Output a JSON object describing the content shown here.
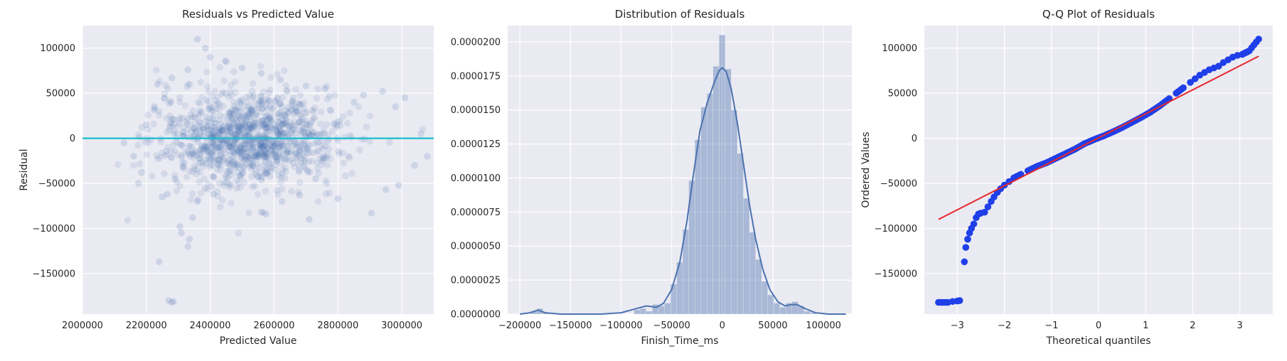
{
  "chart_data": [
    {
      "type": "scatter",
      "title": "Residuals vs Predicted Value",
      "xlabel": "Predicted Value",
      "ylabel": "Residual",
      "xlim": [
        2000000,
        3100000
      ],
      "ylim": [
        -195000,
        125000
      ],
      "xticks": [
        2000000,
        2200000,
        2400000,
        2600000,
        2800000,
        3000000
      ],
      "xtick_labels": [
        "2000000",
        "2200000",
        "2400000",
        "2600000",
        "2800000",
        "3000000"
      ],
      "yticks": [
        -150000,
        -100000,
        -50000,
        0,
        50000,
        100000
      ],
      "ytick_labels": [
        "−150000",
        "−100000",
        "−50000",
        "0",
        "50000",
        "100000"
      ],
      "grid": true,
      "point_color": "#4c72b0",
      "reference_line": {
        "y": 0,
        "color": "#17becf"
      },
      "points": [
        [
          2270000,
          -180000
        ],
        [
          2280000,
          -182000
        ],
        [
          2285000,
          -181000
        ],
        [
          2240000,
          -137000
        ],
        [
          2305000,
          -98000
        ],
        [
          2310000,
          -105000
        ],
        [
          2330000,
          -120000
        ],
        [
          2335000,
          -112000
        ],
        [
          2345000,
          -88000
        ],
        [
          2360000,
          -70000
        ],
        [
          2250000,
          -65000
        ],
        [
          2265000,
          -62000
        ],
        [
          2290000,
          -45000
        ],
        [
          2410000,
          -62000
        ],
        [
          2560000,
          -82000
        ],
        [
          2575000,
          -84000
        ],
        [
          2710000,
          -90000
        ],
        [
          2905000,
          -83000
        ],
        [
          2625000,
          -70000
        ],
        [
          2680000,
          -63000
        ],
        [
          2800000,
          -67000
        ],
        [
          2950000,
          -57000
        ],
        [
          2990000,
          -52000
        ],
        [
          3040000,
          -30000
        ],
        [
          3060000,
          5000
        ],
        [
          3080000,
          -20000
        ],
        [
          2980000,
          35000
        ],
        [
          2940000,
          52000
        ],
        [
          3010000,
          45000
        ],
        [
          2130000,
          -5000
        ],
        [
          2160000,
          -20000
        ],
        [
          2175000,
          -50000
        ],
        [
          2185000,
          -38000
        ],
        [
          2200000,
          15000
        ],
        [
          2225000,
          35000
        ],
        [
          2235000,
          60000
        ],
        [
          2280000,
          67000
        ],
        [
          2330000,
          76000
        ],
        [
          2360000,
          110000
        ],
        [
          2385000,
          100000
        ],
        [
          2400000,
          90000
        ],
        [
          2450000,
          85000
        ],
        [
          2500000,
          78000
        ],
        [
          2560000,
          72000
        ],
        [
          2620000,
          65000
        ],
        [
          2700000,
          58000
        ],
        [
          2760000,
          55000
        ],
        [
          2850000,
          40000
        ],
        [
          2880000,
          48000
        ],
        [
          2730000,
          -45000
        ]
      ]
    },
    {
      "type": "area",
      "title": "Distribution of Residuals",
      "xlabel": "Finish_Time_ms",
      "ylabel": "",
      "xlim": [
        -212000,
        128000
      ],
      "ylim": [
        0,
        2.12e-05
      ],
      "xticks": [
        -200000,
        -150000,
        -100000,
        -50000,
        0,
        50000,
        100000
      ],
      "xtick_labels": [
        "−200000",
        "−150000",
        "−100000",
        "−50000",
        "0",
        "50000",
        "100000"
      ],
      "yticks": [
        0,
        2.5e-06,
        5e-06,
        7.5e-06,
        1e-05,
        1.25e-05,
        1.5e-05,
        1.75e-05,
        2e-05
      ],
      "ytick_labels": [
        "0.0000000",
        "0.0000025",
        "0.0000050",
        "0.0000075",
        "0.0000100",
        "0.0000125",
        "0.0000150",
        "0.0000175",
        "0.0000200"
      ],
      "grid": true,
      "hist_color": "#4c72b0",
      "kde_color": "#4c72b0",
      "bin_width": 6000,
      "hist": [
        [
          -186000,
          2e-07
        ],
        [
          -180000,
          4e-07
        ],
        [
          -174000,
          1e-07
        ],
        [
          -84000,
          3e-07
        ],
        [
          -78000,
          4e-07
        ],
        [
          -72000,
          2e-07
        ],
        [
          -66000,
          7e-07
        ],
        [
          -60000,
          6e-07
        ],
        [
          -54000,
          8e-07
        ],
        [
          -48000,
          2.2e-06
        ],
        [
          -42000,
          3.8e-06
        ],
        [
          -36000,
          6.2e-06
        ],
        [
          -30000,
          9.8e-06
        ],
        [
          -24000,
          1.28e-05
        ],
        [
          -18000,
          1.52e-05
        ],
        [
          -12000,
          1.62e-05
        ],
        [
          -6000,
          1.82e-05
        ],
        [
          0,
          2.05e-05
        ],
        [
          6000,
          1.8e-05
        ],
        [
          12000,
          1.5e-05
        ],
        [
          18000,
          1.18e-05
        ],
        [
          24000,
          8.5e-06
        ],
        [
          30000,
          6e-06
        ],
        [
          36000,
          4e-06
        ],
        [
          42000,
          2.4e-06
        ],
        [
          48000,
          1.4e-06
        ],
        [
          54000,
          8e-07
        ],
        [
          60000,
          5e-07
        ],
        [
          66000,
          8e-07
        ],
        [
          72000,
          9e-07
        ],
        [
          78000,
          6e-07
        ],
        [
          84000,
          2e-07
        ],
        [
          90000,
          1e-07
        ]
      ],
      "kde": [
        [
          -200000,
          0.0
        ],
        [
          -190000,
          1e-07
        ],
        [
          -182000,
          3e-07
        ],
        [
          -175000,
          1e-07
        ],
        [
          -160000,
          0.0
        ],
        [
          -120000,
          0.0
        ],
        [
          -100000,
          1e-07
        ],
        [
          -85000,
          4e-07
        ],
        [
          -75000,
          6e-07
        ],
        [
          -65000,
          5e-07
        ],
        [
          -58000,
          8e-07
        ],
        [
          -50000,
          1.8e-06
        ],
        [
          -42000,
          3.8e-06
        ],
        [
          -35000,
          6.8e-06
        ],
        [
          -28000,
          1.05e-05
        ],
        [
          -22000,
          1.35e-05
        ],
        [
          -15000,
          1.55e-05
        ],
        [
          -8000,
          1.7e-05
        ],
        [
          -3000,
          1.79e-05
        ],
        [
          0,
          1.81e-05
        ],
        [
          4000,
          1.78e-05
        ],
        [
          9000,
          1.65e-05
        ],
        [
          15000,
          1.4e-05
        ],
        [
          21000,
          1.1e-05
        ],
        [
          27000,
          8e-06
        ],
        [
          33000,
          5.5e-06
        ],
        [
          40000,
          3.3e-06
        ],
        [
          47000,
          1.8e-06
        ],
        [
          55000,
          9e-07
        ],
        [
          62000,
          6e-07
        ],
        [
          68000,
          7e-07
        ],
        [
          74000,
          7e-07
        ],
        [
          82000,
          4e-07
        ],
        [
          92000,
          1e-07
        ],
        [
          105000,
          0.0
        ],
        [
          122000,
          0.0
        ]
      ]
    },
    {
      "type": "scatter",
      "title": "Q-Q Plot of Residuals",
      "xlabel": "Theoretical quantiles",
      "ylabel": "Ordered Values",
      "xlim": [
        -3.7,
        3.7
      ],
      "ylim": [
        -195000,
        125000
      ],
      "xticks": [
        -3,
        -2,
        -1,
        0,
        1,
        2,
        3
      ],
      "xtick_labels": [
        "−3",
        "−2",
        "−1",
        "0",
        "1",
        "2",
        "3"
      ],
      "yticks": [
        -150000,
        -100000,
        -50000,
        0,
        50000,
        100000
      ],
      "ytick_labels": [
        "−150000",
        "−100000",
        "−50000",
        "0",
        "50000",
        "100000"
      ],
      "grid": true,
      "point_color": "#1f3fe8",
      "fit_line": {
        "x": [
          -3.4,
          3.4
        ],
        "y": [
          -90000,
          91000
        ],
        "color": "#e8262b"
      },
      "points": [
        [
          -3.4,
          -182000
        ],
        [
          -3.2,
          -182000
        ],
        [
          -3.1,
          -181000
        ],
        [
          -3.0,
          -180500
        ],
        [
          -2.95,
          -180000
        ],
        [
          -2.85,
          -137000
        ],
        [
          -2.82,
          -121000
        ],
        [
          -2.78,
          -112000
        ],
        [
          -2.74,
          -105000
        ],
        [
          -2.7,
          -100000
        ],
        [
          -2.65,
          -95000
        ],
        [
          -2.6,
          -88000
        ],
        [
          -2.55,
          -84000
        ],
        [
          -2.5,
          -83000
        ],
        [
          -2.42,
          -82000
        ],
        [
          -2.35,
          -76000
        ],
        [
          -2.28,
          -70000
        ],
        [
          -2.22,
          -65000
        ],
        [
          -2.15,
          -60000
        ],
        [
          -2.08,
          -56000
        ],
        [
          -2.0,
          -52000
        ],
        [
          -1.9,
          -48000
        ],
        [
          -1.8,
          -44000
        ],
        [
          -1.65,
          -40000
        ],
        [
          -1.5,
          -36000
        ],
        [
          -1.3,
          -31000
        ],
        [
          -1.1,
          -27000
        ],
        [
          -0.9,
          -22000
        ],
        [
          -0.7,
          -17000
        ],
        [
          -0.5,
          -12000
        ],
        [
          -0.3,
          -6000
        ],
        [
          -0.1,
          -1500
        ],
        [
          0.1,
          2500
        ],
        [
          0.3,
          7000
        ],
        [
          0.5,
          12000
        ],
        [
          0.7,
          17500
        ],
        [
          0.9,
          23000
        ],
        [
          1.1,
          29000
        ],
        [
          1.3,
          36000
        ],
        [
          1.5,
          44000
        ],
        [
          1.65,
          50000
        ],
        [
          1.8,
          56000
        ],
        [
          1.95,
          62000
        ],
        [
          2.05,
          66000
        ],
        [
          2.15,
          70000
        ],
        [
          2.25,
          73000
        ],
        [
          2.35,
          76000
        ],
        [
          2.45,
          78000
        ],
        [
          2.55,
          80000
        ],
        [
          2.65,
          84000
        ],
        [
          2.75,
          87000
        ],
        [
          2.85,
          90000
        ],
        [
          2.95,
          92000
        ],
        [
          3.05,
          93000
        ],
        [
          3.2,
          97000
        ],
        [
          3.4,
          110000
        ]
      ]
    }
  ]
}
